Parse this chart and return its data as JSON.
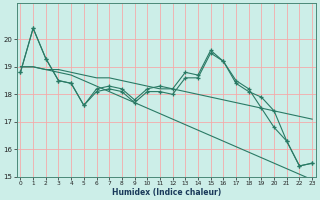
{
  "xlabel": "Humidex (Indice chaleur)",
  "x": [
    0,
    1,
    2,
    3,
    4,
    5,
    6,
    7,
    8,
    9,
    10,
    11,
    12,
    13,
    14,
    15,
    16,
    17,
    18,
    19,
    20,
    21,
    22,
    23
  ],
  "line1": [
    18.8,
    20.4,
    19.3,
    18.5,
    18.4,
    17.6,
    18.1,
    18.2,
    18.1,
    17.7,
    18.1,
    18.1,
    18.0,
    18.6,
    18.6,
    19.5,
    19.2,
    18.4,
    18.1,
    17.9,
    17.4,
    16.3,
    15.4,
    15.5
  ],
  "line2": [
    18.8,
    20.4,
    19.3,
    18.5,
    18.4,
    17.6,
    18.2,
    18.3,
    18.2,
    17.8,
    18.2,
    18.3,
    18.2,
    18.8,
    18.7,
    19.6,
    19.2,
    18.5,
    18.2,
    17.5,
    16.8,
    16.3,
    15.4,
    15.5
  ],
  "line3": [
    19.0,
    19.0,
    18.9,
    18.9,
    18.8,
    18.7,
    18.6,
    18.6,
    18.5,
    18.4,
    18.3,
    18.2,
    18.2,
    18.1,
    18.0,
    17.9,
    17.8,
    17.7,
    17.6,
    17.5,
    17.4,
    17.3,
    17.2,
    17.1
  ],
  "line4": [
    19.0,
    19.0,
    18.9,
    18.8,
    18.7,
    18.5,
    18.3,
    18.1,
    17.9,
    17.7,
    17.5,
    17.3,
    17.1,
    16.9,
    16.7,
    16.5,
    16.3,
    16.1,
    15.9,
    15.7,
    15.5,
    15.3,
    15.1,
    14.9
  ],
  "bg_color": "#cceee8",
  "grid_color_major": "#f4aaaa",
  "grid_color_minor": "#ddeee8",
  "line_color": "#2a7a65",
  "ylim_min": 15,
  "ylim_max": 21,
  "yticks": [
    15,
    16,
    17,
    18,
    19,
    20
  ],
  "xticks": [
    0,
    1,
    2,
    3,
    4,
    5,
    6,
    7,
    8,
    9,
    10,
    11,
    12,
    13,
    14,
    15,
    16,
    17,
    18,
    19,
    20,
    21,
    22,
    23
  ]
}
